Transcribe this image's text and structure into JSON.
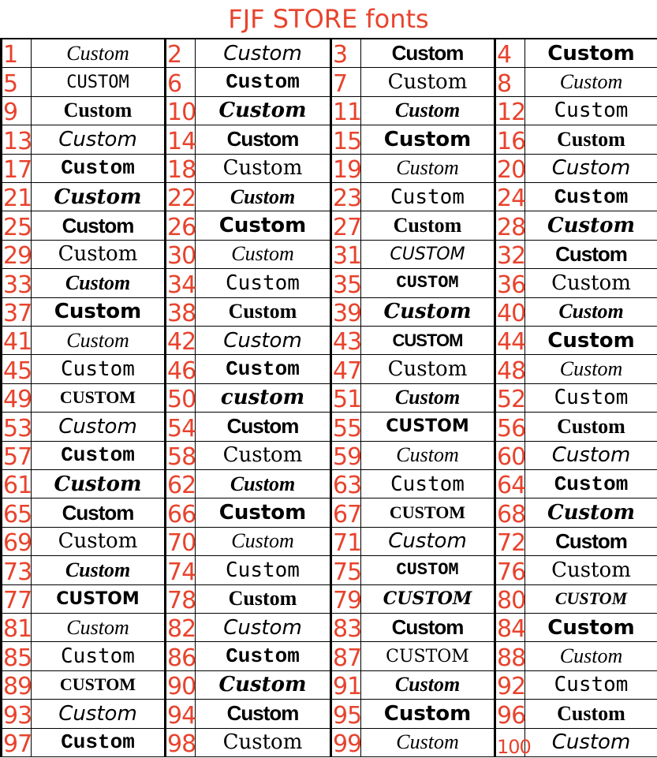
{
  "title": "FJF STORE fonts",
  "colors": {
    "accent": "#e8432d",
    "text": "#000000",
    "border": "#000000"
  },
  "fonts": [
    {
      "n": "1",
      "t": "Custom"
    },
    {
      "n": "2",
      "t": "Custom"
    },
    {
      "n": "3",
      "t": "Custom"
    },
    {
      "n": "4",
      "t": "Custom"
    },
    {
      "n": "5",
      "t": "CUSTOM"
    },
    {
      "n": "6",
      "t": "Custom"
    },
    {
      "n": "7",
      "t": "Custom"
    },
    {
      "n": "8",
      "t": "Custom"
    },
    {
      "n": "9",
      "t": "Custom"
    },
    {
      "n": "10",
      "t": "Custom"
    },
    {
      "n": "11",
      "t": "Custom"
    },
    {
      "n": "12",
      "t": "Custom"
    },
    {
      "n": "13",
      "t": "Custom"
    },
    {
      "n": "14",
      "t": "Custom"
    },
    {
      "n": "15",
      "t": "Custom"
    },
    {
      "n": "16",
      "t": "Custom"
    },
    {
      "n": "17",
      "t": "Custom"
    },
    {
      "n": "18",
      "t": "Custom"
    },
    {
      "n": "19",
      "t": "Custom"
    },
    {
      "n": "20",
      "t": "Custom"
    },
    {
      "n": "21",
      "t": "Custom"
    },
    {
      "n": "22",
      "t": "Custom"
    },
    {
      "n": "23",
      "t": "Custom"
    },
    {
      "n": "24",
      "t": "Custom"
    },
    {
      "n": "25",
      "t": "Custom"
    },
    {
      "n": "26",
      "t": "Custom"
    },
    {
      "n": "27",
      "t": "Custom"
    },
    {
      "n": "28",
      "t": "Custom"
    },
    {
      "n": "29",
      "t": "Custom"
    },
    {
      "n": "30",
      "t": "Custom"
    },
    {
      "n": "31",
      "t": "CUSTOM"
    },
    {
      "n": "32",
      "t": "Custom"
    },
    {
      "n": "33",
      "t": "Custom"
    },
    {
      "n": "34",
      "t": "Custom"
    },
    {
      "n": "35",
      "t": "CUSTOM"
    },
    {
      "n": "36",
      "t": "Custom"
    },
    {
      "n": "37",
      "t": "Custom"
    },
    {
      "n": "38",
      "t": "Custom"
    },
    {
      "n": "39",
      "t": "Custom"
    },
    {
      "n": "40",
      "t": "Custom"
    },
    {
      "n": "41",
      "t": "Custom"
    },
    {
      "n": "42",
      "t": "Custom"
    },
    {
      "n": "43",
      "t": "CUSTOM"
    },
    {
      "n": "44",
      "t": "Custom"
    },
    {
      "n": "45",
      "t": "Custom"
    },
    {
      "n": "46",
      "t": "Custom"
    },
    {
      "n": "47",
      "t": "Custom"
    },
    {
      "n": "48",
      "t": "Custom"
    },
    {
      "n": "49",
      "t": "CUSTOM"
    },
    {
      "n": "50",
      "t": "custom"
    },
    {
      "n": "51",
      "t": "Custom"
    },
    {
      "n": "52",
      "t": "Custom"
    },
    {
      "n": "53",
      "t": "Custom"
    },
    {
      "n": "54",
      "t": "Custom"
    },
    {
      "n": "55",
      "t": "CUSTOM"
    },
    {
      "n": "56",
      "t": "Custom"
    },
    {
      "n": "57",
      "t": "Custom"
    },
    {
      "n": "58",
      "t": "Custom"
    },
    {
      "n": "59",
      "t": "Custom"
    },
    {
      "n": "60",
      "t": "Custom"
    },
    {
      "n": "61",
      "t": "Custom"
    },
    {
      "n": "62",
      "t": "Custom"
    },
    {
      "n": "63",
      "t": "Custom"
    },
    {
      "n": "64",
      "t": "Custom"
    },
    {
      "n": "65",
      "t": "Custom"
    },
    {
      "n": "66",
      "t": "Custom"
    },
    {
      "n": "67",
      "t": "CUSTOM"
    },
    {
      "n": "68",
      "t": "Custom"
    },
    {
      "n": "69",
      "t": "Custom"
    },
    {
      "n": "70",
      "t": "Custom"
    },
    {
      "n": "71",
      "t": "Custom"
    },
    {
      "n": "72",
      "t": "Custom"
    },
    {
      "n": "73",
      "t": "Custom"
    },
    {
      "n": "74",
      "t": "Custom"
    },
    {
      "n": "75",
      "t": "CUSTOM"
    },
    {
      "n": "76",
      "t": "Custom"
    },
    {
      "n": "77",
      "t": "CUSTOM"
    },
    {
      "n": "78",
      "t": "Custom"
    },
    {
      "n": "79",
      "t": "CUSTOM"
    },
    {
      "n": "80",
      "t": "CUSTOM"
    },
    {
      "n": "81",
      "t": "Custom"
    },
    {
      "n": "82",
      "t": "Custom"
    },
    {
      "n": "83",
      "t": "Custom"
    },
    {
      "n": "84",
      "t": "Custom"
    },
    {
      "n": "85",
      "t": "Custom"
    },
    {
      "n": "86",
      "t": "Custom"
    },
    {
      "n": "87",
      "t": "CUSTOM"
    },
    {
      "n": "88",
      "t": "Custom"
    },
    {
      "n": "89",
      "t": "CUSTOM"
    },
    {
      "n": "90",
      "t": "Custom"
    },
    {
      "n": "91",
      "t": "Custom"
    },
    {
      "n": "92",
      "t": "Custom"
    },
    {
      "n": "93",
      "t": "Custom"
    },
    {
      "n": "94",
      "t": "Custom"
    },
    {
      "n": "95",
      "t": "Custom"
    },
    {
      "n": "96",
      "t": "Custom"
    },
    {
      "n": "97",
      "t": "Custom"
    },
    {
      "n": "98",
      "t": "Custom"
    },
    {
      "n": "99",
      "t": "Custom"
    },
    {
      "n": "100",
      "t": "Custom"
    }
  ]
}
